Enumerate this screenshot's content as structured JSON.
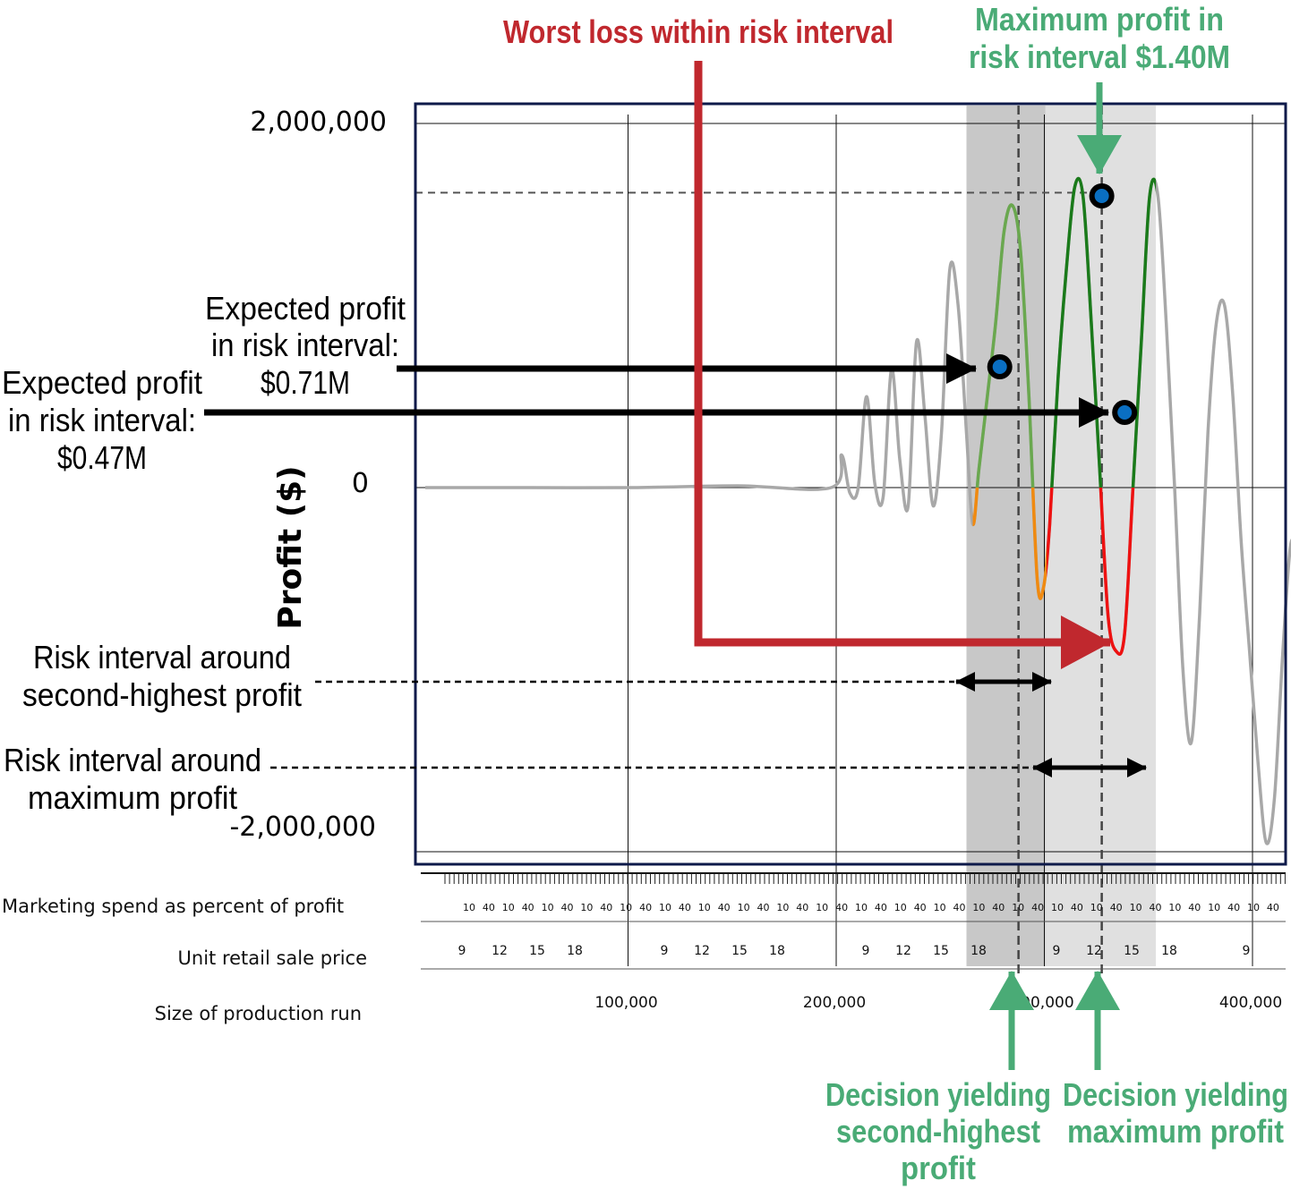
{
  "chart_data": {
    "type": "line",
    "ylabel": "Profit ($)",
    "ylim": [
      -2100000,
      2100000
    ],
    "xlim": [
      0,
      430000
    ],
    "y_ticks": [
      {
        "value": 2000000,
        "label": "2,000,000"
      },
      {
        "value": 0,
        "label": "0"
      },
      {
        "value": -2000000,
        "label": "-2,000,000"
      }
    ],
    "x_axis_rows": [
      {
        "label": "Marketing spend as percent of profit",
        "tick_labels": [
          "10",
          "40"
        ]
      },
      {
        "label": "Unit retail sale price",
        "tick_labels": [
          "9",
          "12",
          "15",
          "18"
        ]
      },
      {
        "label": "Size of production run",
        "tick_labels": [
          "100,000",
          "200,000",
          "300,000",
          "400,000"
        ]
      }
    ],
    "x_tick_values": [
      100000,
      200000,
      300000,
      400000
    ],
    "series": [
      {
        "role": "profit-curve",
        "x": [
          0,
          50000,
          100000,
          150000,
          195000,
          200000,
          204000,
          208000,
          212000,
          216000,
          220000,
          224000,
          228000,
          232000,
          236000,
          240000,
          244000,
          248000,
          252000,
          256000,
          260000,
          263000,
          266000,
          270000,
          274000,
          278000,
          282000,
          286000,
          290000,
          294000,
          297000,
          300000,
          304000,
          308000,
          312000,
          316000,
          320000,
          324000,
          328000,
          332000,
          336000,
          340000,
          344000,
          348000,
          352000,
          356000,
          360000,
          364000,
          368000,
          372000,
          376000,
          380000,
          384000,
          388000,
          392000,
          396000,
          400000,
          404000,
          408000,
          412000,
          416000,
          420000,
          424000,
          428000
        ],
        "y": [
          0,
          0,
          0,
          10000,
          0,
          180000,
          -30000,
          0,
          500000,
          20000,
          -50000,
          650000,
          150000,
          -100000,
          800000,
          400000,
          -100000,
          300000,
          1200000,
          1000000,
          300000,
          -200000,
          100000,
          500000,
          900000,
          1400000,
          1550000,
          1300000,
          500000,
          -500000,
          -550000,
          -200000,
          600000,
          1200000,
          1650000,
          1600000,
          900000,
          100000,
          -700000,
          -900000,
          -800000,
          0,
          800000,
          1600000,
          1600000,
          900000,
          0,
          -1000000,
          -1400000,
          -700000,
          300000,
          900000,
          1000000,
          500000,
          -300000,
          -900000,
          -1500000,
          -1950000,
          -1700000,
          -900000,
          -300000,
          -500000,
          -700000,
          -600000
        ],
        "color": "#a8a8a8"
      }
    ],
    "regions": [
      {
        "role": "risk-interval-second-highest",
        "x": [
          260000,
          298000
        ],
        "color": "#c8c8c8"
      },
      {
        "role": "risk-interval-maximum",
        "x": [
          298000,
          351000
        ],
        "color": "#e0e0e0"
      }
    ],
    "decision_lines": [
      {
        "role": "second-highest-decision",
        "x": 285000
      },
      {
        "role": "maximum-decision",
        "x": 325000
      }
    ],
    "max_profit_y": 1400000,
    "points": [
      {
        "role": "max-profit-point",
        "x": 325000,
        "y": 1400000
      },
      {
        "role": "expected-profit-0.71M",
        "x": 276000,
        "y": 710000
      },
      {
        "role": "expected-profit-0.47M",
        "x": 336000,
        "y": 470000
      }
    ]
  },
  "annotations": {
    "worst_loss": "Worst loss within risk interval",
    "max_profit_line1": "Maximum profit in",
    "max_profit_line2": "risk interval $1.40M",
    "exp_071_line1": "Expected profit",
    "exp_071_line2": "in risk interval:",
    "exp_071_line3": "$0.71M",
    "exp_047_line1": "Expected profit",
    "exp_047_line2": "in risk interval:",
    "exp_047_line3": "$0.47M",
    "risk_second_line1": "Risk interval around",
    "risk_second_line2": "second-highest profit",
    "risk_max_line1": "Risk interval around",
    "risk_max_line2": "maximum profit",
    "decision_second_line1": "Decision yielding",
    "decision_second_line2": "second-highest",
    "decision_second_line3": "profit",
    "decision_max_line1": "Decision yielding",
    "decision_max_line2": "maximum profit"
  },
  "colors": {
    "curve": "#a8a8a8",
    "interval_green_light": "#6aa84f",
    "interval_green_dark": "#1a7a1a",
    "loss_red": "#ee1111",
    "loss_orange": "#f08a10",
    "annotation_red": "#c0282e",
    "annotation_green": "#4aab76",
    "frame": "#0e1a4a",
    "marker_fill": "#0a6fc2"
  }
}
